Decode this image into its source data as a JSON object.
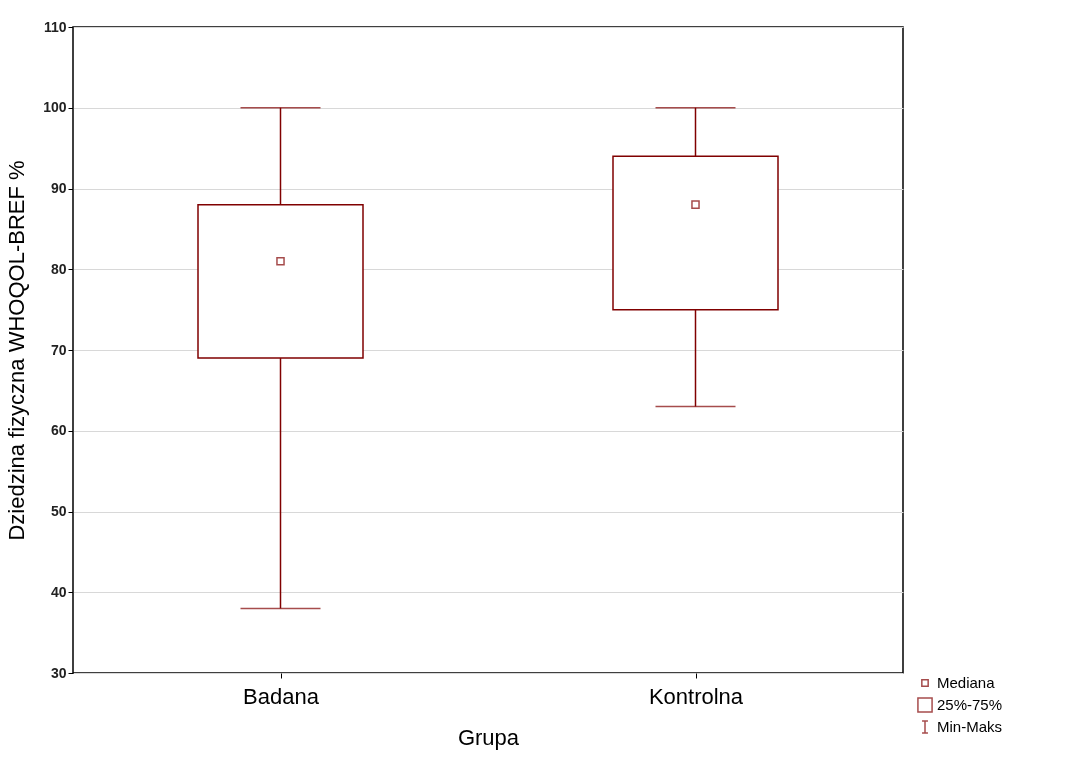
{
  "chart_data": {
    "type": "box",
    "xlabel": "Grupa",
    "ylabel": "Dziedzina fizyczna WHOQOL-BREF %",
    "categories": [
      "Badana",
      "Kontrolna"
    ],
    "series": [
      {
        "color": "#800000",
        "boxes": [
          {
            "low": 38,
            "q1": 69,
            "median": 81,
            "q3": 88,
            "high": 100
          },
          {
            "low": 63,
            "q1": 75,
            "median": 88,
            "q3": 94,
            "high": 100
          }
        ]
      }
    ],
    "ylim": [
      30,
      110
    ],
    "yticks": [
      30,
      40,
      50,
      60,
      70,
      80,
      90,
      100,
      110
    ],
    "grid": "y",
    "annotations": [
      "Mediana",
      "25%-75%",
      "Min-Maks"
    ]
  }
}
